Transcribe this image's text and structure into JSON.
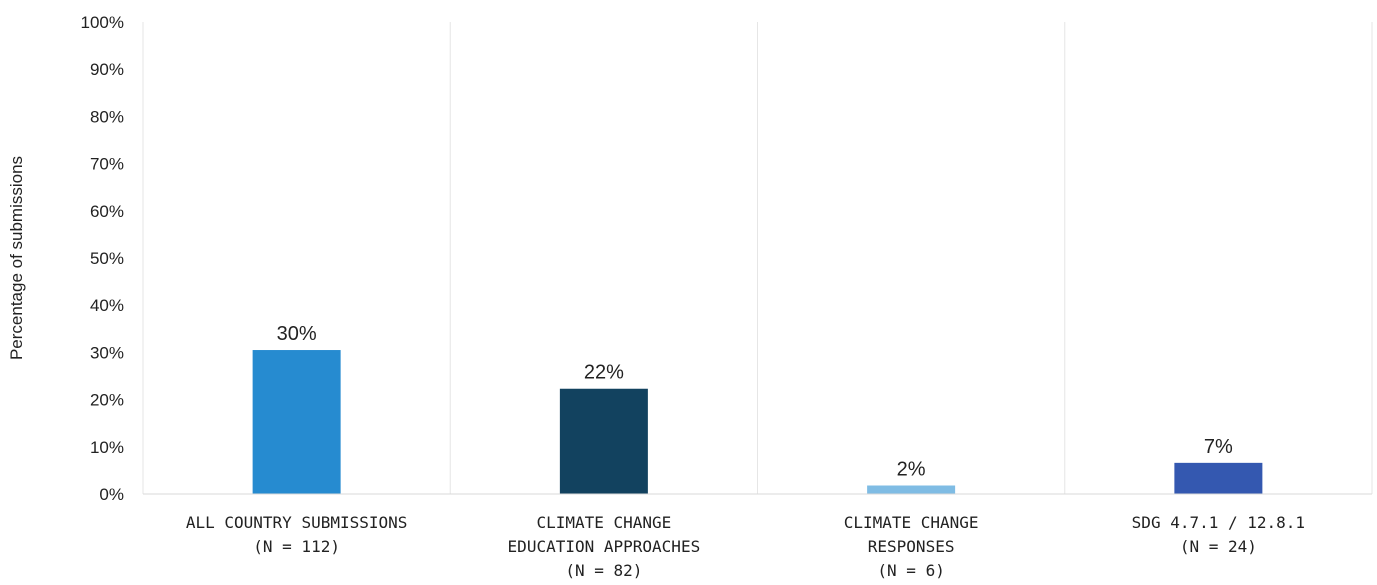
{
  "chart_data": {
    "type": "bar",
    "ylabel": "Percentage of  submissions",
    "ylim": [
      0,
      100
    ],
    "yticks": [
      "0%",
      "10%",
      "20%",
      "30%",
      "40%",
      "50%",
      "60%",
      "70%",
      "80%",
      "90%",
      "100%"
    ],
    "categories": [
      [
        "ALL COUNTRY SUBMISSIONS",
        "(N = 112)"
      ],
      [
        "CLIMATE CHANGE",
        "EDUCATION APPROACHES",
        "(N = 82)"
      ],
      [
        "CLIMATE CHANGE",
        "RESPONSES",
        "(N = 6)"
      ],
      [
        "SDG 4.7.1 / 12.8.1",
        "(N = 24)"
      ]
    ],
    "values": [
      30.5,
      22.3,
      1.8,
      6.6
    ],
    "data_labels": [
      "30%",
      "22%",
      "2%",
      "7%"
    ],
    "colors": [
      "#268BD0",
      "#12425F",
      "#7FBCE4",
      "#3458B0"
    ],
    "grid": "vertical separators",
    "legend": "none"
  }
}
